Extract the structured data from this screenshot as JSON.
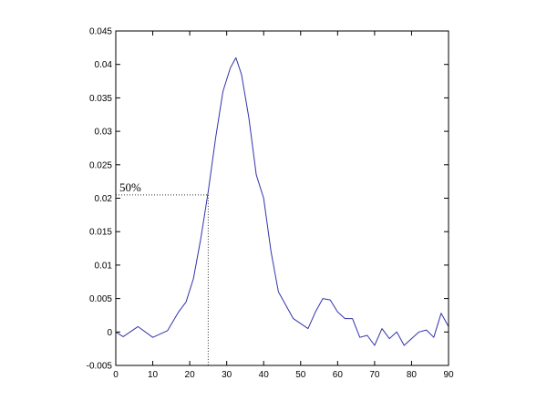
{
  "chart_data": {
    "type": "line",
    "xlim": [
      0,
      90
    ],
    "ylim": [
      -0.005,
      0.045
    ],
    "x_ticks": [
      "0",
      "10",
      "20",
      "30",
      "40",
      "50",
      "60",
      "70",
      "80",
      "90"
    ],
    "y_ticks": [
      "-0.005",
      "0",
      "0.005",
      "0.01",
      "0.015",
      "0.02",
      "0.025",
      "0.03",
      "0.035",
      "0.04",
      "0.045"
    ],
    "grid": false,
    "series": [
      {
        "color": "#3333aa",
        "x": [
          0,
          2,
          6,
          10,
          14,
          17,
          19,
          21,
          23,
          25,
          27,
          29,
          31,
          32.5,
          34,
          36,
          38,
          40,
          42,
          44,
          48,
          52,
          54,
          56,
          58,
          60,
          62,
          64,
          66,
          68,
          70,
          72,
          74,
          76,
          78,
          80,
          82,
          84,
          86,
          88,
          90
        ],
        "y": [
          0.0,
          -0.0007,
          0.0008,
          -0.0008,
          0.0002,
          0.003,
          0.0045,
          0.008,
          0.014,
          0.021,
          0.029,
          0.036,
          0.0395,
          0.041,
          0.0385,
          0.032,
          0.0235,
          0.02,
          0.012,
          0.006,
          0.002,
          0.0005,
          0.003,
          0.005,
          0.0048,
          0.003,
          0.002,
          0.002,
          -0.0008,
          -0.0005,
          -0.002,
          0.0005,
          -0.001,
          0.0,
          -0.002,
          -0.001,
          0.0,
          0.0003,
          -0.0008,
          0.0028,
          0.0008
        ]
      }
    ],
    "annotations": [
      {
        "text": "50%",
        "x": 25,
        "y": 0.0205
      }
    ]
  }
}
